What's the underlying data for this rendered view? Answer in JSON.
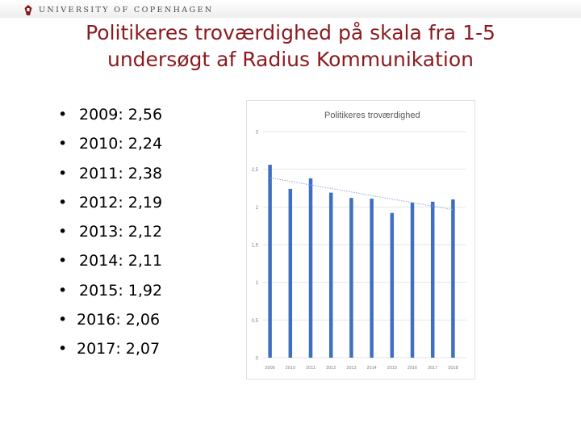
{
  "header": {
    "university": "UNIVERSITY OF COPENHAGEN",
    "logo_icon": "university-crest-icon",
    "accent_color": "#8b1a1f"
  },
  "slide": {
    "title_line1": "Politikeres troværdighed på skala fra 1-5",
    "title_line2": "undersøgt af Radius Kommunikation",
    "bullets": [
      "2009: 2,56",
      "2010: 2,24",
      "2011: 2,38",
      "2012: 2,19",
      "2013: 2,12",
      "2014: 2,11",
      "2015: 1,92",
      "2016:  2,06",
      "2017:  2,07"
    ],
    "bullet_symbol": "•"
  },
  "chart_data": {
    "type": "bar",
    "title": "Politikeres troværdighed",
    "categories": [
      "2009",
      "2010",
      "2011",
      "2012",
      "2013",
      "2014",
      "2015",
      "2016",
      "2017",
      "2018"
    ],
    "values": [
      2.56,
      2.24,
      2.38,
      2.19,
      2.12,
      2.11,
      1.92,
      2.06,
      2.07,
      2.1
    ],
    "ylim": [
      0,
      3
    ],
    "yticks": [
      "0",
      "0,5",
      "1",
      "1,5",
      "2",
      "2,5",
      "3"
    ],
    "ytick_values": [
      0,
      0.5,
      1,
      1.5,
      2,
      2.5,
      3
    ],
    "trendline": "linear",
    "grid": true,
    "bar_color": "#3f6fc2",
    "trend_color": "#8fa8d8",
    "grid_color": "#e6e6e6"
  }
}
